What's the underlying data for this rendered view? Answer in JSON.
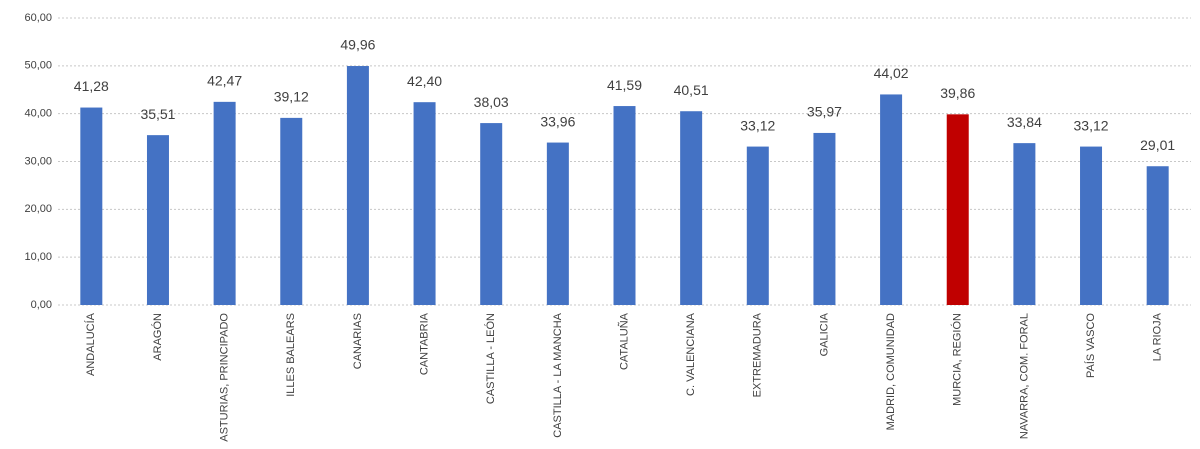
{
  "chart_data": {
    "type": "bar",
    "categories": [
      "ANDALUCÍA",
      "ARAGÓN",
      "ASTURIAS, PRINCIPADO",
      "ILLES BALEARS",
      "CANARIAS",
      "CANTABRIA",
      "CASTILLA - LEÓN",
      "CASTILLA - LA MANCHA",
      "CATALUÑA",
      "C. VALENCIANA",
      "EXTREMADURA",
      "GALICIA",
      "MADRID, COMUNIDAD",
      "MURCIA, REGIÓN",
      "NAVARRA, COM. FORAL",
      "PAÍS VASCO",
      "LA RIOJA"
    ],
    "values": [
      41.28,
      35.51,
      42.47,
      39.12,
      49.96,
      42.4,
      38.03,
      33.96,
      41.59,
      40.51,
      33.12,
      35.97,
      44.02,
      39.86,
      33.84,
      33.12,
      29.01
    ],
    "value_labels": [
      "41,28",
      "35,51",
      "42,47",
      "39,12",
      "49,96",
      "42,40",
      "38,03",
      "33,96",
      "41,59",
      "40,51",
      "33,12",
      "35,97",
      "44,02",
      "39,86",
      "33,84",
      "33,12",
      "29,01"
    ],
    "colors": [
      "#4472c4",
      "#4472c4",
      "#4472c4",
      "#4472c4",
      "#4472c4",
      "#4472c4",
      "#4472c4",
      "#4472c4",
      "#4472c4",
      "#4472c4",
      "#4472c4",
      "#4472c4",
      "#4472c4",
      "#c00000",
      "#4472c4",
      "#4472c4",
      "#4472c4"
    ],
    "ylim": [
      0,
      60
    ],
    "yticks": [
      {
        "value": 0,
        "label": "0,00"
      },
      {
        "value": 10,
        "label": "10,00"
      },
      {
        "value": 20,
        "label": "20,00"
      },
      {
        "value": 30,
        "label": "30,00"
      },
      {
        "value": 40,
        "label": "40,00"
      },
      {
        "value": 50,
        "label": "50,00"
      },
      {
        "value": 60,
        "label": "60,00"
      }
    ],
    "grid": true
  }
}
